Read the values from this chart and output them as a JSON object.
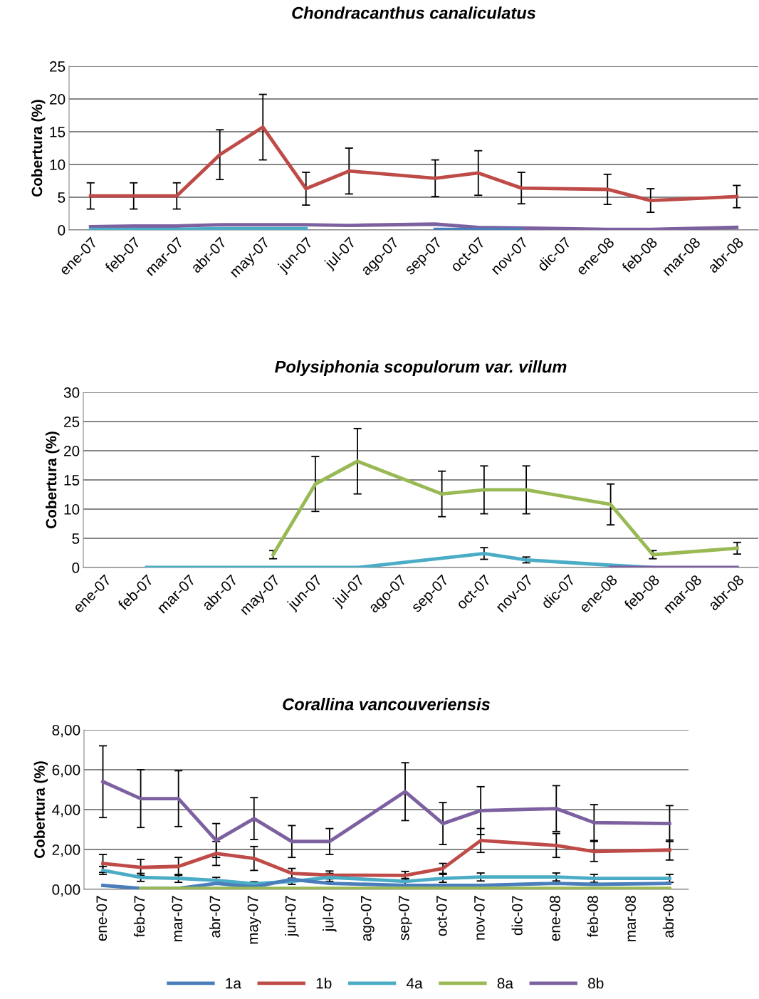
{
  "chart_data": [
    {
      "type": "line",
      "title": "Chondracanthus canaliculatus",
      "ylabel": "Cobertura (%)",
      "categories": [
        "ene-07",
        "feb-07",
        "mar-07",
        "abr-07",
        "may-07",
        "jun-07",
        "jul-07",
        "ago-07",
        "sep-07",
        "oct-07",
        "nov-07",
        "dic-07",
        "ene-08",
        "feb-08",
        "mar-08",
        "abr-08"
      ],
      "ylim": [
        0,
        25
      ],
      "yticks": [
        0,
        5,
        10,
        15,
        20,
        25
      ],
      "grid": "y",
      "marker": "none",
      "line_style": "solid",
      "series": [
        {
          "color": "#4a7ebb",
          "values": [
            null,
            null,
            null,
            null,
            null,
            null,
            null,
            null,
            0.1,
            0.1,
            0.1,
            null,
            null,
            null,
            null,
            null
          ]
        },
        {
          "color": "#be4b48",
          "values": [
            5.2,
            5.2,
            5.2,
            11.5,
            15.7,
            6.3,
            9.0,
            null,
            7.9,
            8.7,
            6.4,
            null,
            6.2,
            4.5,
            null,
            5.1
          ],
          "errors": [
            2,
            2,
            2,
            3.8,
            5,
            2.5,
            3.5,
            null,
            2.8,
            3.4,
            2.4,
            null,
            2.3,
            1.8,
            null,
            1.7
          ]
        },
        {
          "color": "#4bacc6",
          "values": [
            0.1,
            0.1,
            0.1,
            0.2,
            0.2,
            0.2,
            null,
            null,
            null,
            null,
            null,
            null,
            null,
            null,
            null,
            null
          ]
        },
        {
          "color": "#7d60a0",
          "values": [
            0.5,
            0.6,
            0.6,
            0.8,
            0.8,
            0.8,
            0.7,
            null,
            0.9,
            0.4,
            0.3,
            null,
            0.1,
            0.1,
            null,
            0.4
          ]
        }
      ]
    },
    {
      "type": "line",
      "title": "Polysiphonia scopulorum var. villum",
      "ylabel": "Cobertura (%)",
      "categories": [
        "ene-07",
        "feb-07",
        "mar-07",
        "abr-07",
        "may-07",
        "jun-07",
        "jul-07",
        "ago-07",
        "sep-07",
        "oct-07",
        "nov-07",
        "dic-07",
        "ene-08",
        "feb-08",
        "mar-08",
        "abr-08"
      ],
      "ylim": [
        0,
        30
      ],
      "yticks": [
        0,
        5,
        10,
        15,
        20,
        25,
        30
      ],
      "grid": "y",
      "marker": "none",
      "line_style": "solid",
      "series": [
        {
          "color": "#98b954",
          "values": [
            null,
            null,
            null,
            null,
            2.2,
            14.3,
            18.2,
            null,
            12.6,
            13.3,
            13.3,
            null,
            10.8,
            2.2,
            null,
            3.3
          ],
          "errors": [
            null,
            null,
            null,
            null,
            0.7,
            4.7,
            5.6,
            null,
            3.9,
            4.1,
            4.1,
            null,
            3.5,
            0.7,
            null,
            1
          ]
        },
        {
          "color": "#4bacc6",
          "values": [
            null,
            0,
            0,
            0,
            0,
            0,
            0,
            null,
            null,
            2.4,
            1.3,
            null,
            0.4,
            0,
            null,
            null
          ],
          "errors": [
            null,
            null,
            null,
            null,
            null,
            null,
            null,
            null,
            null,
            1,
            0.5,
            null,
            null,
            null,
            null,
            null
          ]
        },
        {
          "color": "#7d60a0",
          "values": [
            null,
            null,
            null,
            null,
            null,
            null,
            null,
            null,
            null,
            null,
            null,
            null,
            0,
            0,
            null,
            0
          ]
        }
      ]
    },
    {
      "type": "line",
      "title": "Corallina vancouveriensis",
      "ylabel": "Cobertura (%)",
      "categories": [
        "ene-07",
        "feb-07",
        "mar-07",
        "abr-07",
        "may-07",
        "jun-07",
        "jul-07",
        "ago-07",
        "sep-07",
        "oct-07",
        "nov-07",
        "dic-07",
        "ene-08",
        "feb-08",
        "mar-08",
        "abr-08"
      ],
      "ylim": [
        0,
        8
      ],
      "yticks": [
        {
          "value": 0,
          "label": "0,00"
        },
        {
          "value": 2,
          "label": "2,00"
        },
        {
          "value": 4,
          "label": "4,00"
        },
        {
          "value": 6,
          "label": "6,00"
        },
        {
          "value": 8,
          "label": "8,00"
        }
      ],
      "grid": "y",
      "marker": "none",
      "line_style": "solid",
      "legend": "bottom",
      "series": [
        {
          "name": "1a",
          "color": "#4a7ebb",
          "values": [
            0.2,
            0.05,
            0.05,
            0.3,
            0.12,
            0.5,
            0.3,
            null,
            0.2,
            0.2,
            0.2,
            null,
            0.3,
            0.25,
            null,
            0.3
          ]
        },
        {
          "name": "1b",
          "color": "#be4b48",
          "values": [
            1.3,
            1.1,
            1.15,
            1.8,
            1.55,
            0.8,
            0.72,
            null,
            0.7,
            1.05,
            2.45,
            null,
            2.2,
            1.9,
            null,
            1.97
          ],
          "errors": [
            0.45,
            0.4,
            0.45,
            0.6,
            0.6,
            0.25,
            0.2,
            null,
            0.2,
            0.25,
            0.6,
            null,
            0.6,
            0.5,
            null,
            0.5
          ]
        },
        {
          "name": "4a",
          "color": "#4bacc6",
          "values": [
            0.95,
            0.6,
            0.55,
            0.45,
            0.28,
            0.4,
            0.6,
            null,
            0.4,
            0.55,
            0.62,
            null,
            0.62,
            0.55,
            null,
            0.55
          ],
          "errors": [
            0.2,
            0.2,
            0.2,
            0.15,
            0.1,
            0.15,
            0.2,
            null,
            0.15,
            0.2,
            0.2,
            null,
            0.2,
            0.2,
            null,
            0.2
          ]
        },
        {
          "name": "8a",
          "color": "#98b954",
          "values": [
            null,
            0.05,
            0.05,
            null,
            null,
            null,
            null,
            null,
            null,
            0.05,
            0.05,
            null,
            0.05,
            0.05,
            null,
            0.05
          ]
        },
        {
          "name": "8b",
          "color": "#7d60a0",
          "values": [
            5.4,
            4.55,
            4.55,
            2.45,
            3.55,
            2.4,
            2.4,
            null,
            4.9,
            3.3,
            3.95,
            null,
            4.05,
            3.35,
            null,
            3.3
          ],
          "errors": [
            1.8,
            1.45,
            1.4,
            0.85,
            1.05,
            0.8,
            0.65,
            null,
            1.45,
            1.05,
            1.2,
            null,
            1.15,
            0.9,
            null,
            0.9
          ]
        }
      ]
    }
  ]
}
